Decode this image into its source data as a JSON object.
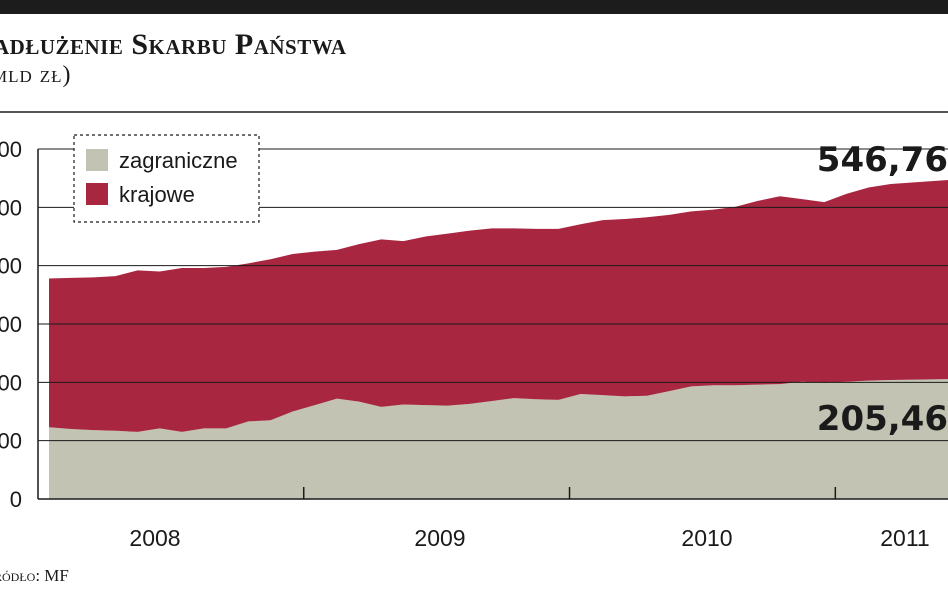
{
  "header": {
    "title": "adłużenie Skarbu Państwa",
    "subtitle": "mld zł)"
  },
  "source": "ródło: MF",
  "chart_data": {
    "type": "area",
    "stacked": true,
    "ylim": [
      0,
      600
    ],
    "yticks": [
      0,
      100,
      200,
      300,
      400,
      500,
      600
    ],
    "ytick_labels": [
      "0",
      "00",
      "00",
      "00",
      "00",
      "00",
      "00"
    ],
    "grid": true,
    "legend_placement": "top-left",
    "x_labels": [
      "2008",
      "2009",
      "2010",
      "2011"
    ],
    "months": [
      "2008-01",
      "2008-02",
      "2008-03",
      "2008-04",
      "2008-05",
      "2008-06",
      "2008-07",
      "2008-08",
      "2008-09",
      "2008-10",
      "2008-11",
      "2008-12",
      "2009-01",
      "2009-02",
      "2009-03",
      "2009-04",
      "2009-05",
      "2009-06",
      "2009-07",
      "2009-08",
      "2009-09",
      "2009-10",
      "2009-11",
      "2009-12",
      "2010-01",
      "2010-02",
      "2010-03",
      "2010-04",
      "2010-05",
      "2010-06",
      "2010-07",
      "2010-08",
      "2010-09",
      "2010-10",
      "2010-11",
      "2010-12",
      "2011-01",
      "2011-02",
      "2011-03",
      "2011-04"
    ],
    "series": [
      {
        "name": "zagraniczne",
        "color": "#c2c3b3",
        "values": [
          123,
          120,
          118,
          117,
          115,
          121,
          115,
          121,
          121,
          133,
          135,
          150,
          161,
          172,
          167,
          158,
          162,
          161,
          160,
          163,
          168,
          173,
          171,
          170,
          180,
          178,
          176,
          177,
          185,
          193,
          195,
          195,
          196,
          197,
          201,
          199,
          201,
          203,
          204,
          205.46
        ]
      },
      {
        "name": "krajowe",
        "color": "#a82640",
        "values": [
          255,
          259,
          262,
          265,
          277,
          269,
          281,
          275,
          277,
          271,
          276,
          270,
          263,
          255,
          270,
          287,
          280,
          289,
          295,
          297,
          296,
          291,
          292,
          293,
          291,
          300,
          304,
          306,
          302,
          300,
          301,
          306,
          315,
          322,
          313,
          310,
          322,
          331,
          336,
          341.3
        ]
      }
    ],
    "annotations": [
      {
        "text": "546,76",
        "series": "total"
      },
      {
        "text": "205,46",
        "series": "zagraniczne"
      }
    ]
  }
}
